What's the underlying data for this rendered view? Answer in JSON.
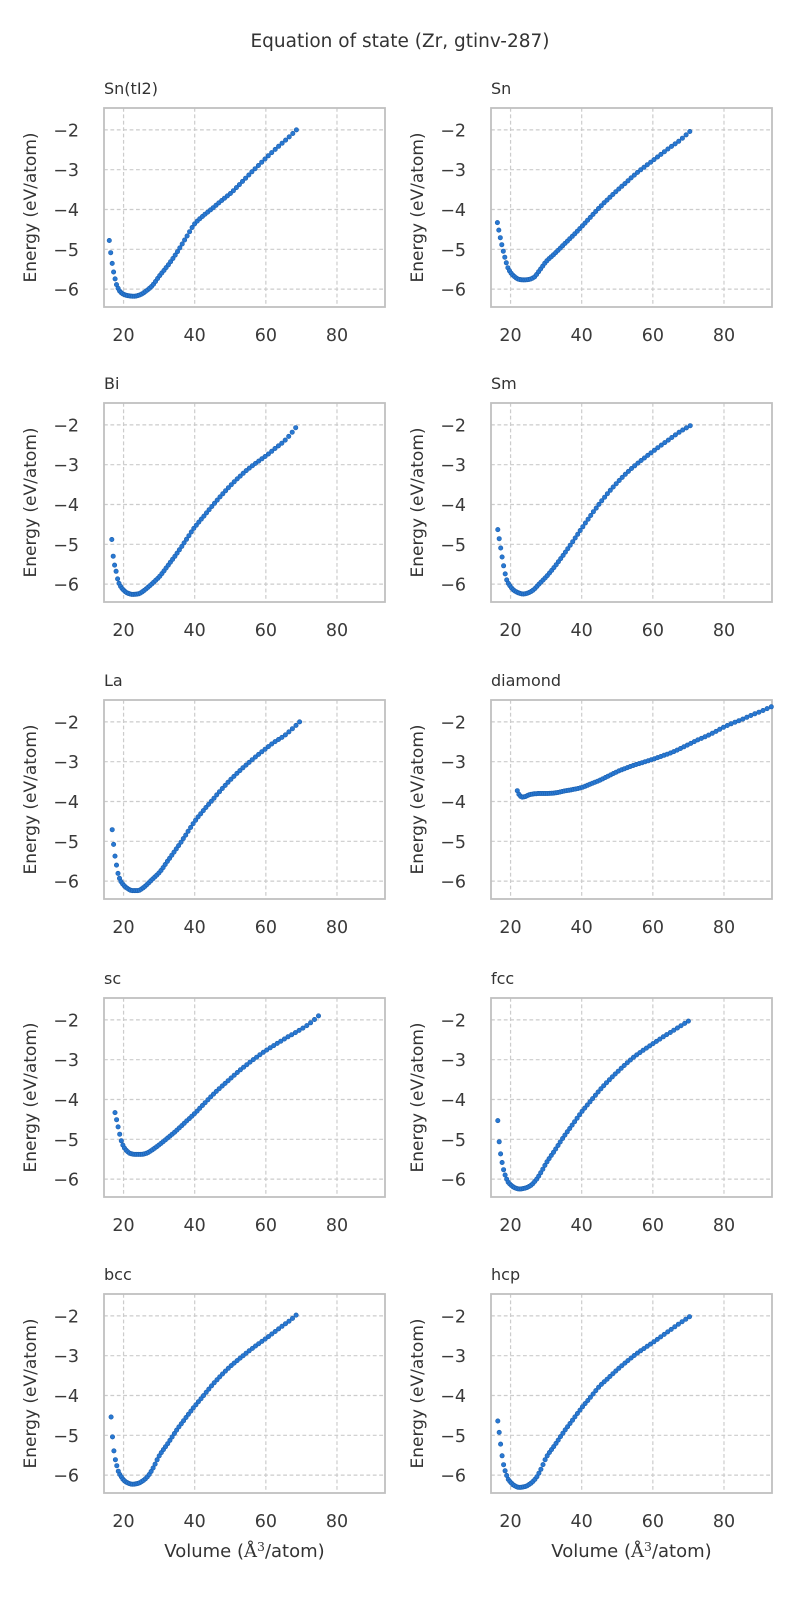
{
  "chart_data": {
    "type": "scatter",
    "title": "Equation of state (Zr, gtinv-287)",
    "xlabel": "Volume (Å³/atom)",
    "xlabel_parts": {
      "prefix": "Volume (",
      "symbol": "Å",
      "sup": "3",
      "suffix": "/atom)"
    },
    "ylabel": "Energy (eV/atom)",
    "xlim": [
      14.5,
      93.5
    ],
    "ylim": [
      -6.45,
      -1.45
    ],
    "xticks": [
      20,
      40,
      60,
      80
    ],
    "yticks": [
      -2,
      -3,
      -4,
      -5,
      -6
    ],
    "grid": true,
    "grid_style": "dashed",
    "legend": false,
    "style": {
      "marker_fill": "#2878d2",
      "marker_edge": "#1b5fae",
      "marker_radius": 2.2,
      "grid_color": "#cccccc",
      "spine_color": "#c0c0c0",
      "tick_color": "#3a3a3a",
      "title_color": "#333333",
      "background": "#ffffff"
    },
    "subplots": [
      {
        "title": "Sn(tI2)",
        "n_points": 78,
        "anchors": [
          [
            16,
            -4.78
          ],
          [
            16.7,
            -5.3
          ],
          [
            17.4,
            -5.66
          ],
          [
            18.2,
            -5.93
          ],
          [
            19,
            -6.06
          ],
          [
            20,
            -6.13
          ],
          [
            21.5,
            -6.17
          ],
          [
            23,
            -6.18
          ],
          [
            24.5,
            -6.15
          ],
          [
            26,
            -6.07
          ],
          [
            28,
            -5.92
          ],
          [
            30,
            -5.68
          ],
          [
            32.5,
            -5.4
          ],
          [
            35,
            -5.08
          ],
          [
            37.5,
            -4.72
          ],
          [
            40,
            -4.36
          ],
          [
            42.5,
            -4.15
          ],
          [
            45,
            -3.97
          ],
          [
            47.5,
            -3.78
          ],
          [
            50,
            -3.6
          ],
          [
            52.5,
            -3.38
          ],
          [
            55,
            -3.15
          ],
          [
            57.5,
            -2.93
          ],
          [
            60,
            -2.71
          ],
          [
            62.5,
            -2.5
          ],
          [
            65,
            -2.3
          ],
          [
            67,
            -2.14
          ],
          [
            68.6,
            -2.0
          ]
        ]
      },
      {
        "title": "Sn",
        "n_points": 78,
        "anchors": [
          [
            16.3,
            -4.33
          ],
          [
            17.3,
            -4.79
          ],
          [
            17.9,
            -5.03
          ],
          [
            18.6,
            -5.27
          ],
          [
            19.2,
            -5.45
          ],
          [
            20,
            -5.58
          ],
          [
            21,
            -5.68
          ],
          [
            22.2,
            -5.75
          ],
          [
            23.5,
            -5.77
          ],
          [
            25,
            -5.76
          ],
          [
            26.5,
            -5.71
          ],
          [
            28,
            -5.55
          ],
          [
            30,
            -5.31
          ],
          [
            32.5,
            -5.1
          ],
          [
            35,
            -4.88
          ],
          [
            37.5,
            -4.66
          ],
          [
            40,
            -4.43
          ],
          [
            42.5,
            -4.19
          ],
          [
            45,
            -3.95
          ],
          [
            47.5,
            -3.73
          ],
          [
            50,
            -3.52
          ],
          [
            52.5,
            -3.32
          ],
          [
            55,
            -3.12
          ],
          [
            57.5,
            -2.94
          ],
          [
            60,
            -2.77
          ],
          [
            62.5,
            -2.6
          ],
          [
            65,
            -2.43
          ],
          [
            67.5,
            -2.27
          ],
          [
            70.4,
            -2.04
          ]
        ]
      },
      {
        "title": "Bi",
        "n_points": 78,
        "anchors": [
          [
            16.7,
            -4.88
          ],
          [
            17.2,
            -5.38
          ],
          [
            17.9,
            -5.68
          ],
          [
            18.4,
            -5.9
          ],
          [
            19.1,
            -6.05
          ],
          [
            20,
            -6.15
          ],
          [
            21,
            -6.22
          ],
          [
            22.5,
            -6.26
          ],
          [
            24,
            -6.25
          ],
          [
            25.5,
            -6.18
          ],
          [
            27,
            -6.07
          ],
          [
            28.5,
            -5.95
          ],
          [
            30,
            -5.82
          ],
          [
            32.5,
            -5.53
          ],
          [
            35,
            -5.23
          ],
          [
            37.5,
            -4.9
          ],
          [
            40,
            -4.57
          ],
          [
            42.5,
            -4.3
          ],
          [
            45,
            -4.03
          ],
          [
            47.5,
            -3.77
          ],
          [
            50,
            -3.53
          ],
          [
            52.5,
            -3.31
          ],
          [
            55,
            -3.11
          ],
          [
            57.5,
            -2.94
          ],
          [
            60,
            -2.78
          ],
          [
            62.5,
            -2.6
          ],
          [
            65,
            -2.42
          ],
          [
            66.8,
            -2.25
          ],
          [
            68.4,
            -2.07
          ]
        ]
      },
      {
        "title": "Sm",
        "n_points": 78,
        "anchors": [
          [
            16.4,
            -4.63
          ],
          [
            17.3,
            -5.14
          ],
          [
            17.9,
            -5.46
          ],
          [
            18.4,
            -5.71
          ],
          [
            18.9,
            -5.89
          ],
          [
            19.8,
            -6.04
          ],
          [
            21,
            -6.16
          ],
          [
            22.2,
            -6.22
          ],
          [
            23.5,
            -6.25
          ],
          [
            25,
            -6.22
          ],
          [
            26.5,
            -6.14
          ],
          [
            28,
            -6.0
          ],
          [
            30,
            -5.82
          ],
          [
            32.5,
            -5.55
          ],
          [
            35,
            -5.25
          ],
          [
            37.5,
            -4.93
          ],
          [
            40,
            -4.6
          ],
          [
            42.5,
            -4.28
          ],
          [
            45,
            -3.98
          ],
          [
            47.5,
            -3.7
          ],
          [
            50,
            -3.45
          ],
          [
            52.5,
            -3.22
          ],
          [
            55,
            -3.02
          ],
          [
            57.5,
            -2.84
          ],
          [
            60,
            -2.67
          ],
          [
            62.5,
            -2.5
          ],
          [
            65,
            -2.34
          ],
          [
            67.5,
            -2.18
          ],
          [
            70.5,
            -2.02
          ]
        ]
      },
      {
        "title": "La",
        "n_points": 78,
        "anchors": [
          [
            16.8,
            -4.71
          ],
          [
            17.4,
            -5.24
          ],
          [
            18,
            -5.59
          ],
          [
            18.5,
            -5.83
          ],
          [
            19.1,
            -5.98
          ],
          [
            20,
            -6.1
          ],
          [
            21,
            -6.18
          ],
          [
            22.5,
            -6.24
          ],
          [
            24,
            -6.24
          ],
          [
            25.5,
            -6.17
          ],
          [
            27,
            -6.05
          ],
          [
            28.5,
            -5.92
          ],
          [
            30,
            -5.79
          ],
          [
            32.5,
            -5.48
          ],
          [
            35,
            -5.17
          ],
          [
            37.5,
            -4.84
          ],
          [
            40,
            -4.5
          ],
          [
            42.5,
            -4.22
          ],
          [
            45,
            -3.96
          ],
          [
            47.5,
            -3.7
          ],
          [
            50,
            -3.46
          ],
          [
            52.5,
            -3.24
          ],
          [
            55,
            -3.04
          ],
          [
            57.5,
            -2.85
          ],
          [
            60,
            -2.67
          ],
          [
            62.5,
            -2.5
          ],
          [
            65,
            -2.36
          ],
          [
            67.5,
            -2.17
          ],
          [
            69.5,
            -2.0
          ]
        ]
      },
      {
        "title": "diamond",
        "n_points": 92,
        "anchors": [
          [
            21.9,
            -3.73
          ],
          [
            22.5,
            -3.84
          ],
          [
            23.2,
            -3.89
          ],
          [
            24,
            -3.88
          ],
          [
            25,
            -3.84
          ],
          [
            26.5,
            -3.81
          ],
          [
            28,
            -3.8
          ],
          [
            30,
            -3.8
          ],
          [
            32,
            -3.79
          ],
          [
            33.5,
            -3.77
          ],
          [
            35,
            -3.74
          ],
          [
            37.5,
            -3.7
          ],
          [
            40,
            -3.65
          ],
          [
            42.5,
            -3.56
          ],
          [
            45,
            -3.47
          ],
          [
            47.5,
            -3.36
          ],
          [
            50,
            -3.25
          ],
          [
            52.5,
            -3.16
          ],
          [
            55,
            -3.08
          ],
          [
            57.5,
            -3.01
          ],
          [
            60,
            -2.94
          ],
          [
            62.5,
            -2.86
          ],
          [
            65,
            -2.78
          ],
          [
            67.5,
            -2.68
          ],
          [
            70,
            -2.57
          ],
          [
            72.5,
            -2.46
          ],
          [
            75,
            -2.36
          ],
          [
            77.5,
            -2.25
          ],
          [
            80,
            -2.13
          ],
          [
            82.5,
            -2.03
          ],
          [
            85,
            -1.94
          ],
          [
            87.5,
            -1.84
          ],
          [
            90,
            -1.75
          ],
          [
            93.3,
            -1.62
          ]
        ]
      },
      {
        "title": "sc",
        "n_points": 78,
        "anchors": [
          [
            17.6,
            -4.33
          ],
          [
            18.3,
            -4.62
          ],
          [
            18.9,
            -4.87
          ],
          [
            19.5,
            -5.08
          ],
          [
            20.2,
            -5.21
          ],
          [
            21,
            -5.3
          ],
          [
            22,
            -5.36
          ],
          [
            23.5,
            -5.38
          ],
          [
            25,
            -5.38
          ],
          [
            26.5,
            -5.35
          ],
          [
            28,
            -5.27
          ],
          [
            30,
            -5.14
          ],
          [
            32.5,
            -4.96
          ],
          [
            35,
            -4.77
          ],
          [
            37.5,
            -4.56
          ],
          [
            40,
            -4.35
          ],
          [
            42.5,
            -4.12
          ],
          [
            45,
            -3.89
          ],
          [
            47.5,
            -3.68
          ],
          [
            50,
            -3.48
          ],
          [
            52.5,
            -3.28
          ],
          [
            55,
            -3.1
          ],
          [
            57.5,
            -2.93
          ],
          [
            60,
            -2.77
          ],
          [
            62.5,
            -2.63
          ],
          [
            65,
            -2.49
          ],
          [
            67.5,
            -2.36
          ],
          [
            70,
            -2.23
          ],
          [
            72.5,
            -2.08
          ],
          [
            74.8,
            -1.9
          ]
        ]
      },
      {
        "title": "fcc",
        "n_points": 78,
        "anchors": [
          [
            16.4,
            -4.53
          ],
          [
            16.9,
            -5.16
          ],
          [
            17.5,
            -5.52
          ],
          [
            18,
            -5.75
          ],
          [
            18.6,
            -5.93
          ],
          [
            19.2,
            -6.06
          ],
          [
            20,
            -6.14
          ],
          [
            21,
            -6.21
          ],
          [
            22.5,
            -6.25
          ],
          [
            24,
            -6.23
          ],
          [
            25.5,
            -6.17
          ],
          [
            27,
            -6.04
          ],
          [
            28.5,
            -5.84
          ],
          [
            30,
            -5.6
          ],
          [
            32.5,
            -5.27
          ],
          [
            35,
            -4.93
          ],
          [
            37.5,
            -4.62
          ],
          [
            40,
            -4.31
          ],
          [
            42.5,
            -4.04
          ],
          [
            45,
            -3.77
          ],
          [
            47.5,
            -3.53
          ],
          [
            50,
            -3.31
          ],
          [
            52.5,
            -3.1
          ],
          [
            55,
            -2.91
          ],
          [
            57.5,
            -2.75
          ],
          [
            60,
            -2.6
          ],
          [
            62.5,
            -2.45
          ],
          [
            65,
            -2.31
          ],
          [
            67.5,
            -2.17
          ],
          [
            70,
            -2.03
          ]
        ]
      },
      {
        "title": "bcc",
        "n_points": 78,
        "anchors": [
          [
            16.5,
            -4.54
          ],
          [
            17,
            -5.15
          ],
          [
            17.5,
            -5.52
          ],
          [
            18.1,
            -5.76
          ],
          [
            18.6,
            -5.92
          ],
          [
            19.2,
            -6.02
          ],
          [
            20,
            -6.12
          ],
          [
            21,
            -6.19
          ],
          [
            22.5,
            -6.23
          ],
          [
            24,
            -6.21
          ],
          [
            25.5,
            -6.14
          ],
          [
            27,
            -6.01
          ],
          [
            28.5,
            -5.79
          ],
          [
            30,
            -5.52
          ],
          [
            32.5,
            -5.2
          ],
          [
            35,
            -4.86
          ],
          [
            37.5,
            -4.56
          ],
          [
            40,
            -4.27
          ],
          [
            42.5,
            -4.0
          ],
          [
            45,
            -3.73
          ],
          [
            47.5,
            -3.49
          ],
          [
            50,
            -3.27
          ],
          [
            52.5,
            -3.08
          ],
          [
            55,
            -2.9
          ],
          [
            57.5,
            -2.73
          ],
          [
            60,
            -2.57
          ],
          [
            62.5,
            -2.4
          ],
          [
            65,
            -2.23
          ],
          [
            67,
            -2.1
          ],
          [
            68.5,
            -1.98
          ]
        ]
      },
      {
        "title": "hcp",
        "n_points": 78,
        "anchors": [
          [
            16.4,
            -4.64
          ],
          [
            17.1,
            -5.14
          ],
          [
            17.7,
            -5.56
          ],
          [
            18.2,
            -5.8
          ],
          [
            18.8,
            -5.98
          ],
          [
            19.3,
            -6.1
          ],
          [
            20,
            -6.18
          ],
          [
            21,
            -6.26
          ],
          [
            22.5,
            -6.31
          ],
          [
            24,
            -6.29
          ],
          [
            25.5,
            -6.22
          ],
          [
            27,
            -6.09
          ],
          [
            28.5,
            -5.86
          ],
          [
            30,
            -5.56
          ],
          [
            32.5,
            -5.24
          ],
          [
            35,
            -4.91
          ],
          [
            37.5,
            -4.61
          ],
          [
            40,
            -4.31
          ],
          [
            42.5,
            -4.04
          ],
          [
            45,
            -3.77
          ],
          [
            47.5,
            -3.56
          ],
          [
            50,
            -3.35
          ],
          [
            52.5,
            -3.16
          ],
          [
            55,
            -2.98
          ],
          [
            57.5,
            -2.82
          ],
          [
            60,
            -2.67
          ],
          [
            62.5,
            -2.51
          ],
          [
            65,
            -2.35
          ],
          [
            67.5,
            -2.19
          ],
          [
            70.3,
            -2.02
          ]
        ]
      }
    ]
  }
}
